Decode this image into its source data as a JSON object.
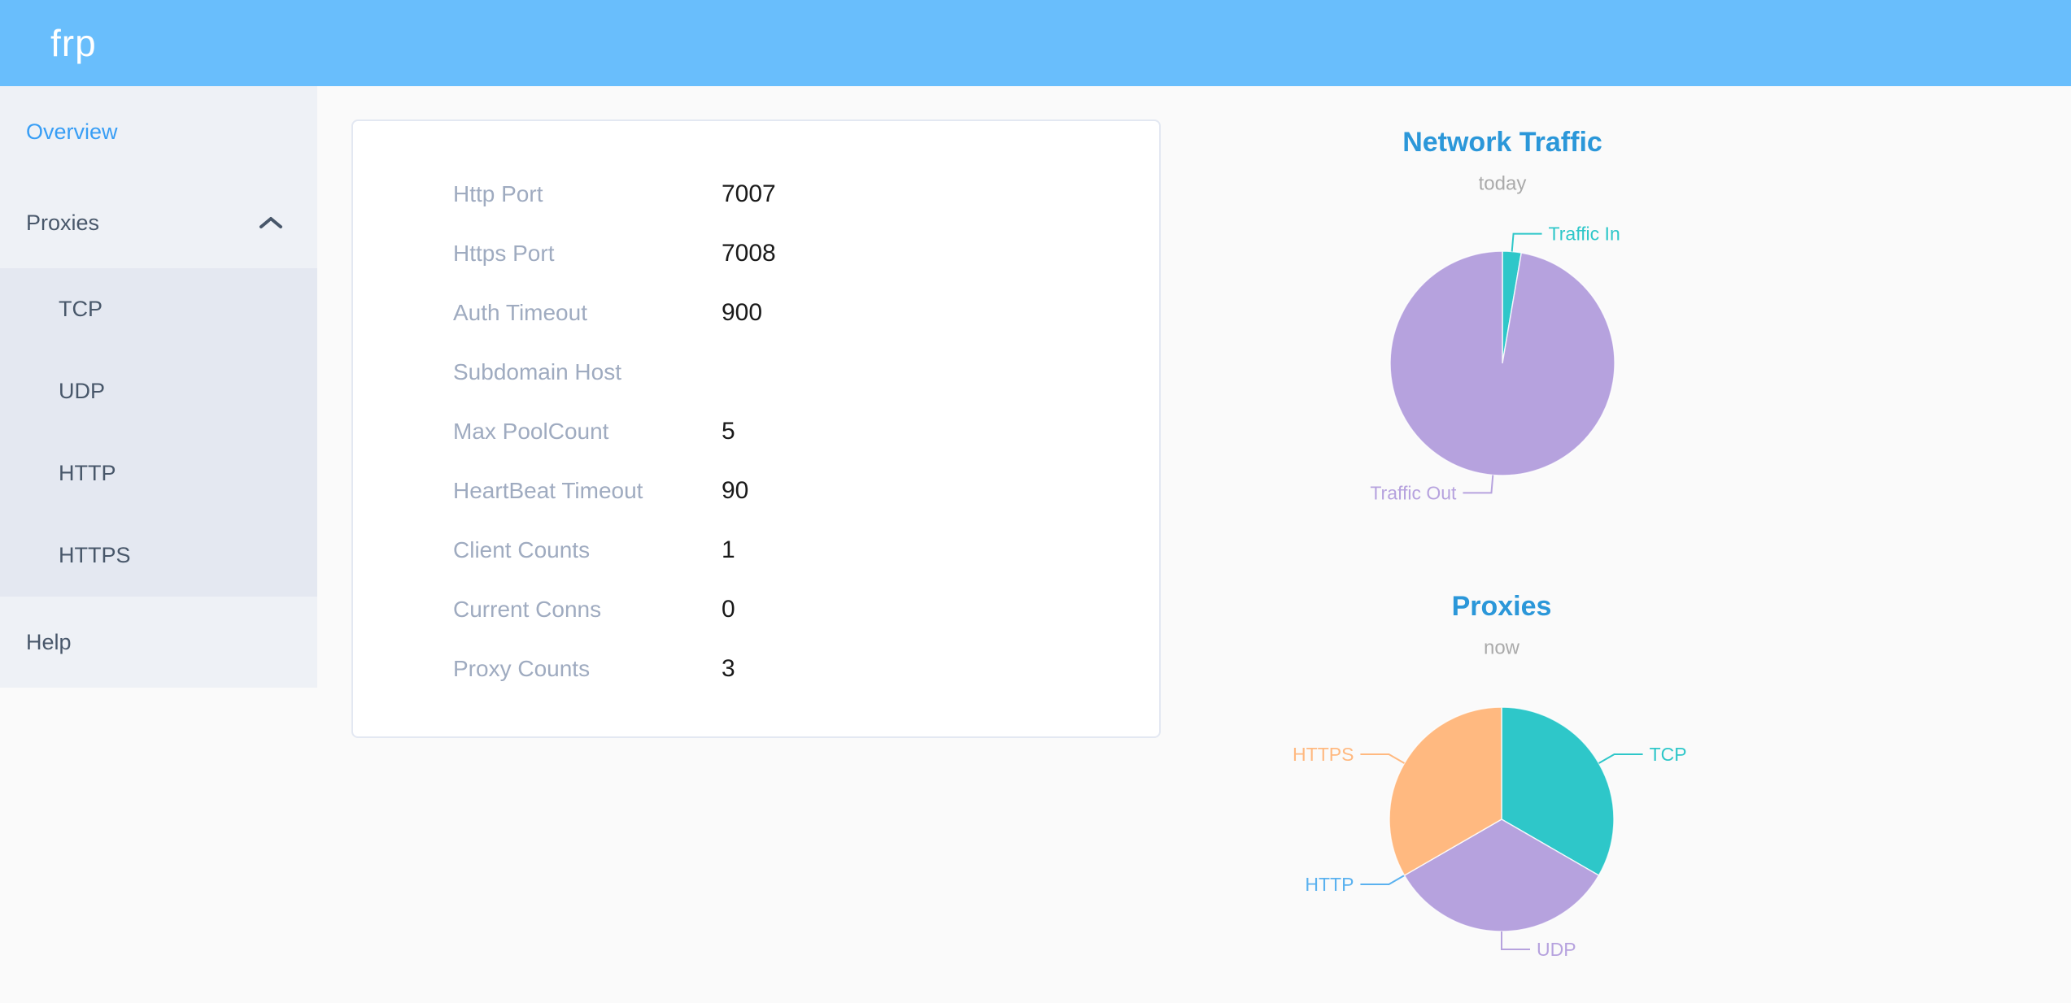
{
  "header": {
    "logo": "frp"
  },
  "sidebar": {
    "overview_label": "Overview",
    "proxies_label": "Proxies",
    "proxies_expanded": true,
    "proxies_children": [
      "TCP",
      "UDP",
      "HTTP",
      "HTTPS"
    ],
    "help_label": "Help"
  },
  "overview": {
    "rows": [
      {
        "label": "Http Port",
        "value": "7007"
      },
      {
        "label": "Https Port",
        "value": "7008"
      },
      {
        "label": "Auth Timeout",
        "value": "900"
      },
      {
        "label": "Subdomain Host",
        "value": ""
      },
      {
        "label": "Max PoolCount",
        "value": "5"
      },
      {
        "label": "HeartBeat Timeout",
        "value": "90"
      },
      {
        "label": "Client Counts",
        "value": "1"
      },
      {
        "label": "Current Conns",
        "value": "0"
      },
      {
        "label": "Proxy Counts",
        "value": "3"
      }
    ]
  },
  "chart_data": [
    {
      "type": "pie",
      "title": "Network Traffic",
      "subtitle": "today",
      "legend_position": "none",
      "labels_style": "outside leader lines, colored like slices",
      "slices": [
        {
          "label": "Traffic In",
          "value": 2.7,
          "color": "#2ec7c9"
        },
        {
          "label": "Traffic Out",
          "value": 97.3,
          "color": "#b6a2de"
        }
      ],
      "value_note": "percent share estimated from arc angles"
    },
    {
      "type": "pie",
      "title": "Proxies",
      "subtitle": "now",
      "legend_position": "none",
      "labels_style": "outside leader lines, colored like slices",
      "slices": [
        {
          "label": "TCP",
          "value": 1,
          "color": "#2ec7c9"
        },
        {
          "label": "UDP",
          "value": 1,
          "color": "#b6a2de"
        },
        {
          "label": "HTTP",
          "value": 0,
          "color": "#5ab1ef"
        },
        {
          "label": "HTTPS",
          "value": 1,
          "color": "#ffb980"
        }
      ],
      "value_note": "proxy counts per type; total equals Proxy Counts = 3"
    }
  ],
  "colors": {
    "header_bg": "#69befc",
    "menu_bg": "#eef1f6",
    "submenu_bg": "#e4e8f1",
    "menu_text": "#48576a",
    "menu_active": "#389ef5",
    "page_bg": "#fafafa",
    "card_border": "#e3e8f2",
    "label_gray": "#9fabc0",
    "value_black": "#1a1a1a",
    "chart_title": "#2b97d9",
    "chart_subtitle": "#aaaaaa"
  }
}
